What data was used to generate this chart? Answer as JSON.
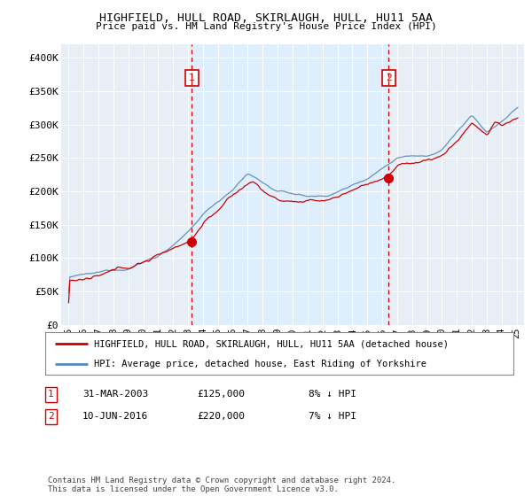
{
  "title1": "HIGHFIELD, HULL ROAD, SKIRLAUGH, HULL, HU11 5AA",
  "title2": "Price paid vs. HM Land Registry's House Price Index (HPI)",
  "legend_line1": "HIGHFIELD, HULL ROAD, SKIRLAUGH, HULL, HU11 5AA (detached house)",
  "legend_line2": "HPI: Average price, detached house, East Riding of Yorkshire",
  "footnote": "Contains HM Land Registry data © Crown copyright and database right 2024.\nThis data is licensed under the Open Government Licence v3.0.",
  "sale1_label": "1",
  "sale1_date": "31-MAR-2003",
  "sale1_price": "£125,000",
  "sale1_hpi": "8% ↓ HPI",
  "sale2_label": "2",
  "sale2_date": "10-JUN-2016",
  "sale2_price": "£220,000",
  "sale2_hpi": "7% ↓ HPI",
  "sale1_x": 2003.25,
  "sale1_y": 125000,
  "sale2_x": 2016.44,
  "sale2_y": 220000,
  "vline1_x": 2003.25,
  "vline2_x": 2016.44,
  "red_color": "#cc0000",
  "blue_color": "#5588bb",
  "fill_color": "#ddeeff",
  "bg_color": "#e8eef5",
  "ylim": [
    0,
    420000
  ],
  "xlim": [
    1994.5,
    2025.5
  ],
  "yticks": [
    0,
    50000,
    100000,
    150000,
    200000,
    250000,
    300000,
    350000,
    400000
  ],
  "ytick_labels": [
    "£0",
    "£50K",
    "£100K",
    "£150K",
    "£200K",
    "£250K",
    "£300K",
    "£350K",
    "£400K"
  ],
  "xtick_labels": [
    "95",
    "96",
    "97",
    "98",
    "99",
    "00",
    "01",
    "02",
    "03",
    "04",
    "05",
    "06",
    "07",
    "08",
    "09",
    "10",
    "11",
    "12",
    "13",
    "14",
    "15",
    "16",
    "17",
    "18",
    "19",
    "20",
    "21",
    "22",
    "23",
    "24",
    "25"
  ],
  "xticks": [
    1995,
    1996,
    1997,
    1998,
    1999,
    2000,
    2001,
    2002,
    2003,
    2004,
    2005,
    2006,
    2007,
    2008,
    2009,
    2010,
    2011,
    2012,
    2013,
    2014,
    2015,
    2016,
    2017,
    2018,
    2019,
    2020,
    2021,
    2022,
    2023,
    2024,
    2025
  ]
}
